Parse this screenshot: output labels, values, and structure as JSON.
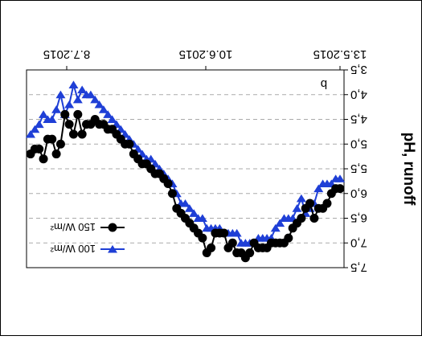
{
  "chart_data": {
    "type": "line",
    "orientation": "rotated-180",
    "panel_label": "b",
    "ylabel": "pH, runoff",
    "xlabel": "",
    "ylim": [
      3.5,
      7.5
    ],
    "y_ticks": [
      "3,5",
      "4,0",
      "4,5",
      "5,0",
      "5,5",
      "6,0",
      "6,5",
      "7,0",
      "7,5"
    ],
    "x_ticks": [
      "13.5.2015",
      "10.6.2015",
      "8.7.2015"
    ],
    "grid": "horizontal-dashed",
    "legend_position": "bottom-left",
    "series": [
      {
        "name": "100 W/m²",
        "marker": "triangle",
        "color": "#1f3fd6",
        "values": [
          5.7,
          5.7,
          5.8,
          5.8,
          5.8,
          5.9,
          6.2,
          6.3,
          6.4,
          6.1,
          6.3,
          6.5,
          6.5,
          6.5,
          6.6,
          6.7,
          6.9,
          6.9,
          6.9,
          6.9,
          7.0,
          7.0,
          7.0,
          7.0,
          6.8,
          6.8,
          6.8,
          6.8,
          6.7,
          6.7,
          6.7,
          6.7,
          6.5,
          6.5,
          6.4,
          6.3,
          6.2,
          6.2,
          6.0,
          5.8,
          5.7,
          5.6,
          5.5,
          5.4,
          5.3,
          5.3,
          5.2,
          5.1,
          5.0,
          4.9,
          4.8,
          4.7,
          4.6,
          4.5,
          4.4,
          4.3,
          4.2,
          4.1,
          4.0,
          4.0,
          3.9,
          4.1,
          3.8,
          4.2,
          4.4,
          4.0,
          4.3,
          4.5,
          4.5,
          4.4,
          4.6,
          4.7,
          4.8
        ]
      },
      {
        "name": "150 W/m²",
        "marker": "circle",
        "color": "#000000",
        "values": [
          5.9,
          5.9,
          6.0,
          6.2,
          6.3,
          6.3,
          6.5,
          6.2,
          6.3,
          6.5,
          6.6,
          6.7,
          6.9,
          7.0,
          7.0,
          7.0,
          7.0,
          7.1,
          7.1,
          7.1,
          7.0,
          7.2,
          7.3,
          7.2,
          7.2,
          7.0,
          7.1,
          6.8,
          6.8,
          6.8,
          7.1,
          7.2,
          6.9,
          6.8,
          6.7,
          6.6,
          6.5,
          6.4,
          6.3,
          6.0,
          5.8,
          5.7,
          5.6,
          5.6,
          5.5,
          5.4,
          5.4,
          5.3,
          5.2,
          5.0,
          5.0,
          4.9,
          4.8,
          4.7,
          4.7,
          4.6,
          4.6,
          4.5,
          4.6,
          4.6,
          4.8,
          4.4,
          4.8,
          4.6,
          4.4,
          5.0,
          5.2,
          4.9,
          4.9,
          5.3,
          5.1,
          5.1,
          5.2
        ]
      }
    ]
  }
}
